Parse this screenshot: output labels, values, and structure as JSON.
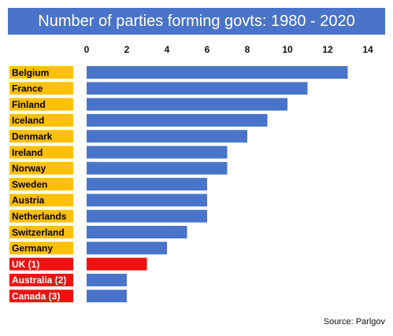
{
  "chart_data": {
    "type": "bar",
    "orientation": "horizontal",
    "title": "Number of parties forming govts: 1980 - 2020",
    "source": "Source: Parlgov",
    "categories": [
      "Belgium",
      "France",
      "Finland",
      "Iceland",
      "Denmark",
      "Ireland",
      "Norway",
      "Sweden",
      "Austria",
      "Netherlands",
      "Switzerland",
      "Germany",
      "UK (1)",
      "Australia (2)",
      "Canada (3)"
    ],
    "values": [
      13,
      11,
      10,
      9,
      8,
      7,
      7,
      6,
      6,
      6,
      5,
      4,
      3,
      2,
      2
    ],
    "highlight": [
      false,
      false,
      false,
      false,
      false,
      false,
      false,
      false,
      false,
      false,
      false,
      false,
      true,
      true,
      true
    ],
    "xlim": [
      0,
      14
    ],
    "xticks": [
      0,
      2,
      4,
      6,
      8,
      10,
      12,
      14
    ],
    "xticks_position": "top",
    "grid": false,
    "colors": {
      "title_bg": "#4a74c9",
      "bar": "#4a74c9",
      "bar_highlight": "#ee1111",
      "label_bg": "#ffc000",
      "label_bg_highlight": "#ee1111",
      "label_text": "#000000",
      "label_text_highlight": "#ffffff"
    }
  }
}
